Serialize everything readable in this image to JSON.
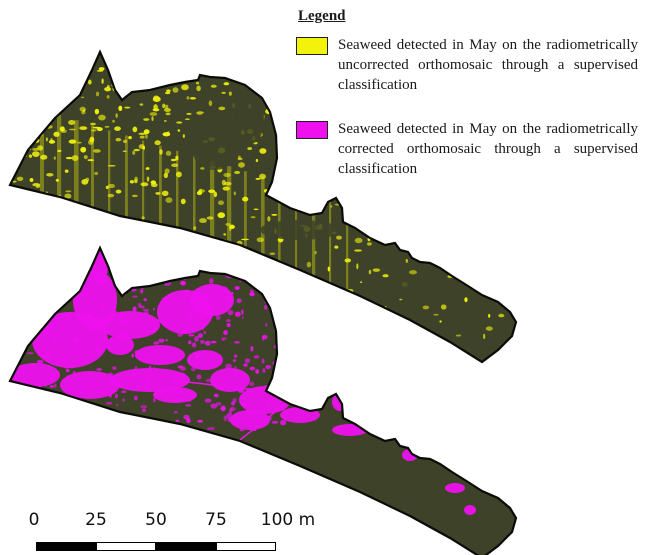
{
  "legend": {
    "title": "Legend",
    "items": [
      {
        "text": "Seaweed detected in May on the radiometrically uncorrected orthomosaic through a supervised classification",
        "color": "#f2f20a"
      },
      {
        "text": "Seaweed detected in May on the radiometrically corrected orthomosaic through a supervised classification",
        "color": "#ee11ee"
      }
    ]
  },
  "map": {
    "base_color": "#3d4228",
    "outline_color": "#0b0b08"
  },
  "scale_bar": {
    "labels": [
      "0",
      "25",
      "50",
      "75",
      "100 m"
    ],
    "segment_colors": [
      "#000000",
      "#ffffff",
      "#000000",
      "#ffffff"
    ]
  }
}
